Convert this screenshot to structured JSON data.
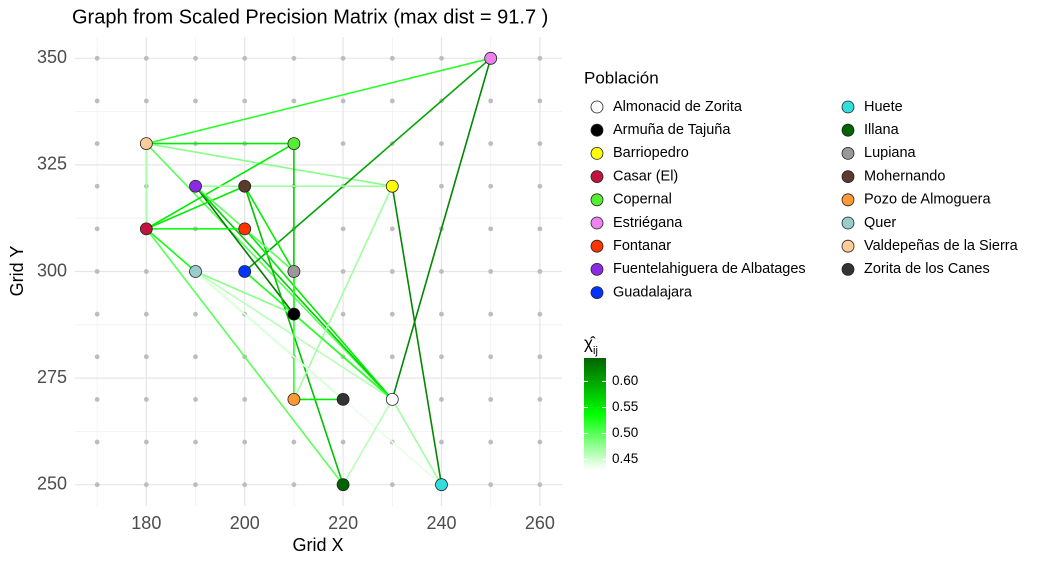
{
  "chart_data": {
    "type": "network",
    "title": "Graph from Scaled Precision Matrix (max dist = 91.7 )",
    "x_label": "Grid X",
    "y_label": "Grid Y",
    "xlim": [
      165.5,
      264.5
    ],
    "ylim": [
      245,
      355
    ],
    "xticks": [
      180,
      200,
      220,
      240,
      260
    ],
    "yticks": [
      250,
      275,
      300,
      325,
      350
    ],
    "grid": true,
    "background_grid": {
      "x": [
        170,
        180,
        190,
        200,
        210,
        220,
        230,
        240,
        250,
        260
      ],
      "y": [
        250,
        260,
        270,
        280,
        290,
        300,
        310,
        320,
        330,
        340,
        350
      ]
    },
    "legend_title": "Población",
    "series": [
      {
        "name": "Almonacid de Zorita",
        "color": "#ffffff",
        "x": [
          230
        ],
        "y": [
          270
        ]
      },
      {
        "name": "Armuña de Tajuña",
        "color": "#000000",
        "x": [
          210
        ],
        "y": [
          290
        ]
      },
      {
        "name": "Barriopedro",
        "color": "#ffff00",
        "x": [
          230
        ],
        "y": [
          320
        ]
      },
      {
        "name": "Casar (El)",
        "color": "#c0143c",
        "x": [
          180
        ],
        "y": [
          310
        ]
      },
      {
        "name": "Copernal",
        "color": "#55ee33",
        "x": [
          210
        ],
        "y": [
          330
        ]
      },
      {
        "name": "Estriégana",
        "color": "#ee82ee",
        "x": [
          250
        ],
        "y": [
          350
        ]
      },
      {
        "name": "Fontanar",
        "color": "#ff3300",
        "x": [
          200
        ],
        "y": [
          310
        ]
      },
      {
        "name": "Fuentelahiguera de Albatages",
        "color": "#8a2be2",
        "x": [
          190
        ],
        "y": [
          320
        ]
      },
      {
        "name": "Guadalajara",
        "color": "#0033ff",
        "x": [
          200
        ],
        "y": [
          300
        ]
      },
      {
        "name": "Huete",
        "color": "#33dddd",
        "x": [
          240
        ],
        "y": [
          250
        ]
      },
      {
        "name": "Illana",
        "color": "#006400",
        "x": [
          220
        ],
        "y": [
          250
        ]
      },
      {
        "name": "Lupiana",
        "color": "#999999",
        "x": [
          210
        ],
        "y": [
          300
        ]
      },
      {
        "name": "Mohernando",
        "color": "#5c3a2e",
        "x": [
          200
        ],
        "y": [
          320
        ]
      },
      {
        "name": "Pozo de Almoguera",
        "color": "#ff9933",
        "x": [
          210
        ],
        "y": [
          270
        ]
      },
      {
        "name": "Quer",
        "color": "#99cccc",
        "x": [
          190
        ],
        "y": [
          300
        ]
      },
      {
        "name": "Valdepeñas de la Sierra",
        "color": "#ffcc99",
        "x": [
          180
        ],
        "y": [
          330
        ]
      },
      {
        "name": "Zorita de los Canes",
        "color": "#333333",
        "x": [
          220
        ],
        "y": [
          270
        ]
      }
    ],
    "edges": [
      {
        "x": [
          180,
          250
        ],
        "y": [
          330,
          350
        ],
        "value": 0.52
      },
      {
        "x": [
          180,
          210
        ],
        "y": [
          330,
          330
        ],
        "value": 0.55
      },
      {
        "x": [
          180,
          230
        ],
        "y": [
          330,
          320
        ],
        "value": 0.48
      },
      {
        "x": [
          180,
          230
        ],
        "y": [
          330,
          270
        ],
        "value": 0.5
      },
      {
        "x": [
          180,
          180
        ],
        "y": [
          330,
          310
        ],
        "value": 0.47
      },
      {
        "x": [
          250,
          200
        ],
        "y": [
          350,
          300
        ],
        "value": 0.6
      },
      {
        "x": [
          250,
          230
        ],
        "y": [
          350,
          270
        ],
        "value": 0.62
      },
      {
        "x": [
          230,
          240
        ],
        "y": [
          320,
          250
        ],
        "value": 0.62
      },
      {
        "x": [
          210,
          210
        ],
        "y": [
          330,
          290
        ],
        "value": 0.57
      },
      {
        "x": [
          210,
          180
        ],
        "y": [
          330,
          310
        ],
        "value": 0.55
      },
      {
        "x": [
          190,
          210
        ],
        "y": [
          320,
          290
        ],
        "value": 0.63
      },
      {
        "x": [
          190,
          230
        ],
        "y": [
          320,
          270
        ],
        "value": 0.57
      },
      {
        "x": [
          190,
          230
        ],
        "y": [
          320,
          320
        ],
        "value": 0.47
      },
      {
        "x": [
          200,
          220
        ],
        "y": [
          320,
          250
        ],
        "value": 0.58
      },
      {
        "x": [
          200,
          180
        ],
        "y": [
          320,
          310
        ],
        "value": 0.55
      },
      {
        "x": [
          200,
          210
        ],
        "y": [
          320,
          300
        ],
        "value": 0.55
      },
      {
        "x": [
          180,
          200
        ],
        "y": [
          310,
          310
        ],
        "value": 0.54
      },
      {
        "x": [
          180,
          220
        ],
        "y": [
          310,
          270
        ],
        "value": 0.53
      },
      {
        "x": [
          180,
          220
        ],
        "y": [
          310,
          250
        ],
        "value": 0.5
      },
      {
        "x": [
          190,
          210
        ],
        "y": [
          300,
          290
        ],
        "value": 0.48
      },
      {
        "x": [
          190,
          230
        ],
        "y": [
          300,
          270
        ],
        "value": 0.46
      },
      {
        "x": [
          200,
          230
        ],
        "y": [
          310,
          270
        ],
        "value": 0.55
      },
      {
        "x": [
          200,
          230
        ],
        "y": [
          300,
          270
        ],
        "value": 0.53
      },
      {
        "x": [
          210,
          210
        ],
        "y": [
          300,
          290
        ],
        "value": 0.52
      },
      {
        "x": [
          210,
          220
        ],
        "y": [
          270,
          270
        ],
        "value": 0.55
      },
      {
        "x": [
          210,
          210
        ],
        "y": [
          270,
          300
        ],
        "value": 0.52
      },
      {
        "x": [
          230,
          210
        ],
        "y": [
          320,
          270
        ],
        "value": 0.47
      },
      {
        "x": [
          230,
          240
        ],
        "y": [
          270,
          250
        ],
        "value": 0.47
      },
      {
        "x": [
          190,
          240
        ],
        "y": [
          300,
          250
        ],
        "value": 0.44
      },
      {
        "x": [
          210,
          230
        ],
        "y": [
          290,
          270
        ],
        "value": 0.52
      },
      {
        "x": [
          190,
          210
        ],
        "y": [
          320,
          300
        ],
        "value": 0.5
      },
      {
        "x": [
          230,
          220
        ],
        "y": [
          270,
          250
        ],
        "value": 0.46
      }
    ],
    "colorbar_title": {
      "symbol": "χ̂",
      "subscript": "ij"
    },
    "colorscale": [
      "#ffffff",
      "#00ff00",
      "#006400"
    ],
    "clim": [
      0.43,
      0.645
    ],
    "cticks": [
      0.45,
      {
        "value": 0.5,
        "label": "0.50"
      },
      0.55,
      {
        "value": 0.6,
        "label": "0.60"
      }
    ]
  }
}
